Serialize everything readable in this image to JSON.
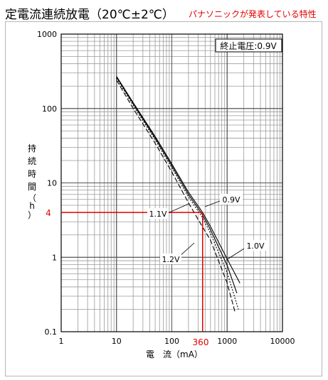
{
  "header": {
    "title": "定電流連続放電（20℃±2℃）",
    "note": "パナソニックが発表している特性"
  },
  "chart_data": {
    "type": "line",
    "title": "定電流連続放電（20℃±2℃）",
    "condition_label": "終止電圧:0.9V",
    "xlabel": "電　流（mA）",
    "ylabel_chars": [
      "持",
      "続",
      "時",
      "間",
      "（",
      "h",
      "）"
    ],
    "x_scale": "log",
    "y_scale": "log",
    "xlim": [
      1,
      10000
    ],
    "ylim": [
      0.1,
      1000
    ],
    "x_ticks": [
      "1",
      "10",
      "100",
      "1000",
      "10000"
    ],
    "y_ticks": [
      "0.1",
      "1",
      "10",
      "100",
      "1000"
    ],
    "grid": true,
    "highlight": {
      "current_ma": 360,
      "current_label": "360",
      "hours": 4,
      "hours_label": "4",
      "color": "#e30000"
    },
    "series": [
      {
        "name": "0.9V",
        "style": "solid",
        "x": [
          10,
          20,
          50,
          100,
          200,
          360,
          500,
          1000,
          1700
        ],
        "y": [
          270,
          120,
          42,
          18,
          7.5,
          4,
          2.6,
          0.95,
          0.45
        ]
      },
      {
        "name": "1.0V",
        "style": "solid",
        "x": [
          10,
          20,
          50,
          100,
          200,
          360,
          500,
          1000,
          1500
        ],
        "y": [
          265,
          116,
          40,
          17,
          7,
          3.7,
          2.35,
          0.78,
          0.33
        ]
      },
      {
        "name": "1.1V",
        "style": "dotted",
        "x": [
          10,
          20,
          50,
          100,
          200,
          360,
          500,
          1000,
          1600
        ],
        "y": [
          255,
          110,
          38,
          16,
          6.5,
          3.4,
          2.1,
          0.62,
          0.2
        ]
      },
      {
        "name": "1.2V",
        "style": "dashed",
        "x": [
          10,
          20,
          50,
          100,
          200,
          300,
          500,
          1000,
          1400
        ],
        "y": [
          240,
          100,
          34,
          14,
          5.4,
          3.2,
          1.7,
          0.45,
          0.18
        ]
      }
    ],
    "series_labels": [
      "0.9V",
      "1.0V",
      "1.1V",
      "1.2V"
    ]
  }
}
